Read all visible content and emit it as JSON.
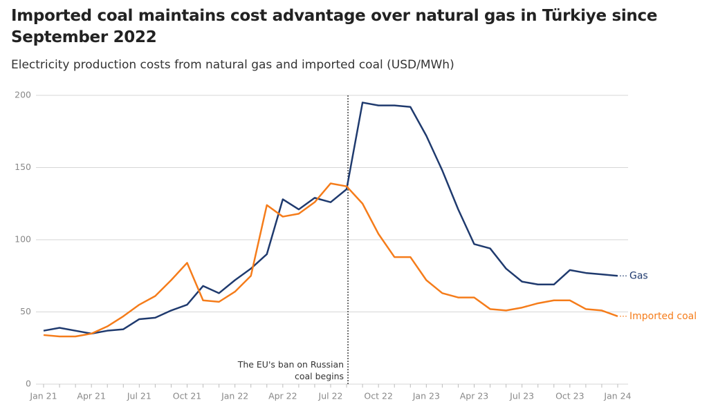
{
  "chart_data": {
    "type": "line",
    "title": "Imported coal maintains cost advantage over natural gas in Türkiye since September 2022",
    "subtitle": "Electricity production costs from natural gas and imported coal (USD/MWh)",
    "categories": [
      "Jan 21",
      null,
      null,
      "Apr 21",
      null,
      null,
      "Jul 21",
      null,
      null,
      "Oct 21",
      null,
      null,
      "Jan 22",
      null,
      null,
      "Apr 22",
      null,
      null,
      "Jul 22",
      null,
      null,
      "Oct 22",
      null,
      null,
      "Jan 23",
      null,
      null,
      "Apr 23",
      null,
      null,
      "Jul 23",
      null,
      null,
      "Oct 23",
      null,
      null,
      "Jan 24"
    ],
    "series": [
      {
        "name": "Gas",
        "color": "#1f3a6e",
        "values": [
          37,
          39,
          37,
          35,
          37,
          38,
          45,
          46,
          51,
          55,
          68,
          63,
          72,
          80,
          90,
          128,
          121,
          129,
          126,
          135,
          195,
          193,
          193,
          192,
          172,
          148,
          121,
          97,
          94,
          80,
          71,
          69,
          69,
          79,
          77,
          76,
          75
        ]
      },
      {
        "name": "Imported coal",
        "color": "#f57c1a",
        "values": [
          34,
          33,
          33,
          35,
          40,
          47,
          55,
          61,
          72,
          84,
          58,
          57,
          64,
          75,
          124,
          116,
          118,
          126,
          139,
          137,
          125,
          104,
          88,
          88,
          72,
          63,
          60,
          60,
          52,
          51,
          53,
          56,
          58,
          58,
          52,
          51,
          47
        ]
      }
    ],
    "ylim": [
      0,
      200
    ],
    "yticks": [
      0,
      50,
      100,
      150,
      200
    ],
    "grid": true,
    "annotation": "The EU's ban on Russian coal begins"
  }
}
